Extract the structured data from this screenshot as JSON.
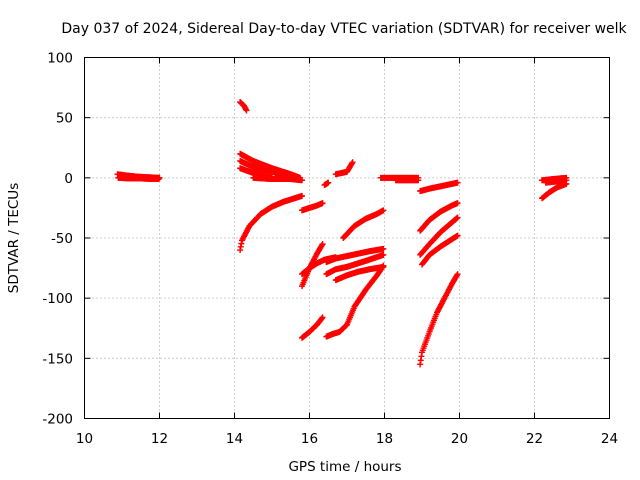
{
  "chart_data": {
    "type": "scatter",
    "title": "Day 037 of 2024, Sidereal Day-to-day VTEC variation (SDTVAR) for receiver welk",
    "xlabel": "GPS time / hours",
    "ylabel": "SDTVAR / TECUs",
    "xlim": [
      10,
      24
    ],
    "ylim": [
      -200,
      100
    ],
    "xticks": [
      10,
      12,
      14,
      16,
      18,
      20,
      22,
      24
    ],
    "yticks": [
      -200,
      -150,
      -100,
      -50,
      0,
      50,
      100
    ],
    "xtick_labels": [
      "10",
      "12",
      "14",
      "16",
      "18",
      "20",
      "22",
      "24"
    ],
    "ytick_labels": [
      "-200",
      "-150",
      "-100",
      "-50",
      "0",
      "50",
      "100"
    ],
    "grid": true,
    "marker": "+",
    "marker_color": "#ff0000",
    "series_segments": [
      {
        "x": [
          10.88,
          11.1,
          11.4,
          11.7,
          12.0
        ],
        "y": [
          3,
          2,
          1,
          0.5,
          0
        ]
      },
      {
        "x": [
          10.9,
          11.2,
          11.5,
          11.8,
          11.98
        ],
        "y": [
          0,
          -0.5,
          -0.5,
          -1,
          -1
        ]
      },
      {
        "x": [
          14.15,
          14.25,
          14.32
        ],
        "y": [
          63,
          60,
          56
        ]
      },
      {
        "x": [
          14.15,
          14.5,
          15.0,
          15.5,
          15.75
        ],
        "y": [
          20,
          14,
          8,
          3,
          0
        ]
      },
      {
        "x": [
          14.15,
          14.5,
          15.0,
          15.5
        ],
        "y": [
          14,
          9,
          5,
          0
        ]
      },
      {
        "x": [
          14.15,
          14.5,
          15.0
        ],
        "y": [
          8,
          4,
          0
        ]
      },
      {
        "x": [
          14.5,
          15.0,
          15.5,
          15.8
        ],
        "y": [
          0,
          -1,
          -1,
          -2
        ]
      },
      {
        "x": [
          14.15,
          14.2,
          14.4,
          14.7,
          15.0,
          15.3,
          15.6,
          15.8
        ],
        "y": [
          -60,
          -52,
          -40,
          -30,
          -24,
          -20,
          -17,
          -15
        ]
      },
      {
        "x": [
          15.8,
          16.0,
          16.2,
          16.35
        ],
        "y": [
          -27,
          -25,
          -23,
          -21
        ]
      },
      {
        "x": [
          15.8,
          16.0,
          16.2,
          16.35
        ],
        "y": [
          -90,
          -75,
          -63,
          -55
        ]
      },
      {
        "x": [
          15.8,
          16.0,
          16.2,
          16.4,
          16.7
        ],
        "y": [
          -80,
          -75,
          -71,
          -68,
          -66
        ]
      },
      {
        "x": [
          15.8,
          16.0,
          16.2,
          16.35
        ],
        "y": [
          -133,
          -128,
          -122,
          -116
        ]
      },
      {
        "x": [
          16.4,
          16.5
        ],
        "y": [
          -6,
          -4
        ]
      },
      {
        "x": [
          16.45,
          16.6,
          16.8,
          17.0,
          17.2,
          17.5,
          17.8,
          17.97
        ],
        "y": [
          -132,
          -130,
          -128,
          -122,
          -107,
          -93,
          -81,
          -73
        ]
      },
      {
        "x": [
          16.7,
          17.0,
          17.3,
          17.6,
          17.97
        ],
        "y": [
          -85,
          -81,
          -78,
          -76,
          -74
        ]
      },
      {
        "x": [
          16.45,
          16.7,
          17.0,
          17.3,
          17.6,
          17.97
        ],
        "y": [
          -80,
          -76,
          -74,
          -71,
          -68,
          -64
        ]
      },
      {
        "x": [
          16.45,
          16.7,
          17.0,
          17.3,
          17.6,
          17.97
        ],
        "y": [
          -70,
          -67,
          -65,
          -63,
          -61,
          -59
        ]
      },
      {
        "x": [
          16.7,
          17.0,
          17.15
        ],
        "y": [
          3,
          5,
          13
        ]
      },
      {
        "x": [
          16.9,
          17.2,
          17.5,
          17.8,
          17.97
        ],
        "y": [
          -50,
          -40,
          -34,
          -30,
          -27
        ]
      },
      {
        "x": [
          17.9,
          18.3,
          18.6,
          18.9
        ],
        "y": [
          0,
          0,
          0,
          0
        ]
      },
      {
        "x": [
          18.3,
          18.6,
          18.9
        ],
        "y": [
          -2,
          -2,
          -2
        ]
      },
      {
        "x": [
          18.95,
          19.2,
          19.5,
          19.8,
          19.95
        ],
        "y": [
          -11,
          -9,
          -7,
          -5,
          -4
        ]
      },
      {
        "x": [
          18.95,
          19.2,
          19.5,
          19.8,
          19.95
        ],
        "y": [
          -44,
          -35,
          -28,
          -23,
          -21
        ]
      },
      {
        "x": [
          18.95,
          19.2,
          19.5,
          19.8,
          19.95
        ],
        "y": [
          -64,
          -55,
          -45,
          -37,
          -33
        ]
      },
      {
        "x": [
          19.0,
          19.2,
          19.5,
          19.8,
          19.95
        ],
        "y": [
          -72,
          -64,
          -57,
          -51,
          -48
        ]
      },
      {
        "x": [
          18.95,
          19.0,
          19.2,
          19.4,
          19.6,
          19.8,
          19.95
        ],
        "y": [
          -155,
          -145,
          -128,
          -112,
          -100,
          -88,
          -80
        ]
      },
      {
        "x": [
          22.2,
          22.4,
          22.6,
          22.85
        ],
        "y": [
          -17,
          -12,
          -8,
          -5
        ]
      },
      {
        "x": [
          22.2,
          22.5,
          22.85
        ],
        "y": [
          -2,
          -1,
          0
        ]
      },
      {
        "x": [
          22.3,
          22.6,
          22.85
        ],
        "y": [
          -4,
          -3,
          -2
        ]
      }
    ]
  }
}
